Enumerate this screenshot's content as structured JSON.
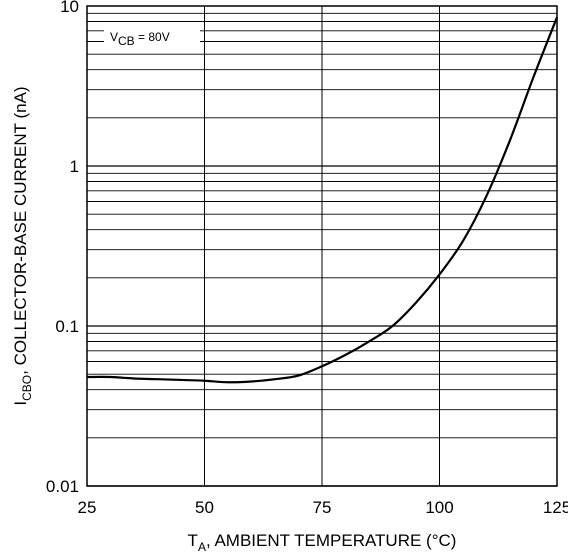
{
  "chart_data": {
    "type": "line",
    "xlabel": {
      "main": "T",
      "sub": "A",
      "rest": ", AMBIENT TEMPERATURE (°C)"
    },
    "ylabel": {
      "main": "I",
      "sub": "CBO",
      "rest": ", COLLECTOR-BASE CURRENT (nA)"
    },
    "annotation": {
      "main": "V",
      "sub": "CB",
      "rest": " = 80V"
    },
    "x_ticks": [
      "25",
      "50",
      "75",
      "100",
      "125"
    ],
    "y_ticks": [
      "0.01",
      "0.1",
      "1",
      "10"
    ],
    "xlim": [
      25,
      125
    ],
    "ylim": [
      0.01,
      10
    ],
    "yscale": "log",
    "grid": true,
    "series": [
      {
        "x": [
          25,
          30,
          35,
          40,
          45,
          50,
          55,
          60,
          65,
          70,
          75,
          80,
          85,
          90,
          95,
          100,
          105,
          110,
          115,
          120,
          125
        ],
        "y": [
          0.048,
          0.048,
          0.047,
          0.0465,
          0.046,
          0.0455,
          0.0445,
          0.045,
          0.0465,
          0.049,
          0.056,
          0.066,
          0.08,
          0.1,
          0.14,
          0.21,
          0.34,
          0.65,
          1.45,
          3.6,
          8.5
        ]
      }
    ]
  }
}
